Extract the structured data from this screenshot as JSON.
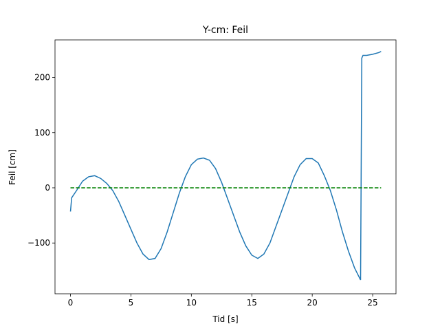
{
  "chart_data": {
    "type": "line",
    "title": "Y-cm: Feil",
    "xlabel": "Tid [s]",
    "ylabel": "Feil [cm]",
    "xlim": [
      -1.28,
      26.93
    ],
    "ylim": [
      -192,
      268
    ],
    "xticks": [
      0,
      5,
      10,
      15,
      20,
      25
    ],
    "yticks": [
      {
        "value": -100,
        "label": "−100"
      },
      0,
      100,
      200
    ],
    "series": [
      {
        "color": "#1f77b4",
        "dash": false,
        "x": [
          0,
          0.1,
          0.5,
          1,
          1.5,
          2,
          2.5,
          3,
          3.5,
          4,
          4.5,
          5,
          5.5,
          6,
          6.5,
          7,
          7.5,
          8,
          8.5,
          9,
          9.5,
          10,
          10.5,
          11,
          11.5,
          12,
          12.5,
          13,
          13.5,
          14,
          14.5,
          15,
          15.5,
          16,
          16.5,
          17,
          17.5,
          18,
          18.5,
          19,
          19.5,
          20,
          20.5,
          21,
          21.5,
          22,
          22.5,
          23,
          23.5,
          24,
          24.1,
          24.2,
          24.5,
          25,
          25.5,
          25.7
        ],
        "values": [
          -43,
          -18,
          -5,
          12,
          20,
          22,
          17,
          8,
          -5,
          -25,
          -50,
          -75,
          -100,
          -120,
          -130,
          -128,
          -110,
          -80,
          -45,
          -10,
          20,
          42,
          52,
          54,
          50,
          35,
          10,
          -20,
          -50,
          -80,
          -105,
          -122,
          -128,
          -120,
          -100,
          -70,
          -40,
          -10,
          20,
          42,
          53,
          53,
          45,
          22,
          -5,
          -40,
          -80,
          -115,
          -145,
          -167,
          235,
          240,
          240,
          242,
          245,
          247
        ]
      },
      {
        "color": "#008000",
        "dash": true,
        "x": [
          0,
          25.7
        ],
        "values": [
          0,
          0
        ]
      }
    ]
  }
}
